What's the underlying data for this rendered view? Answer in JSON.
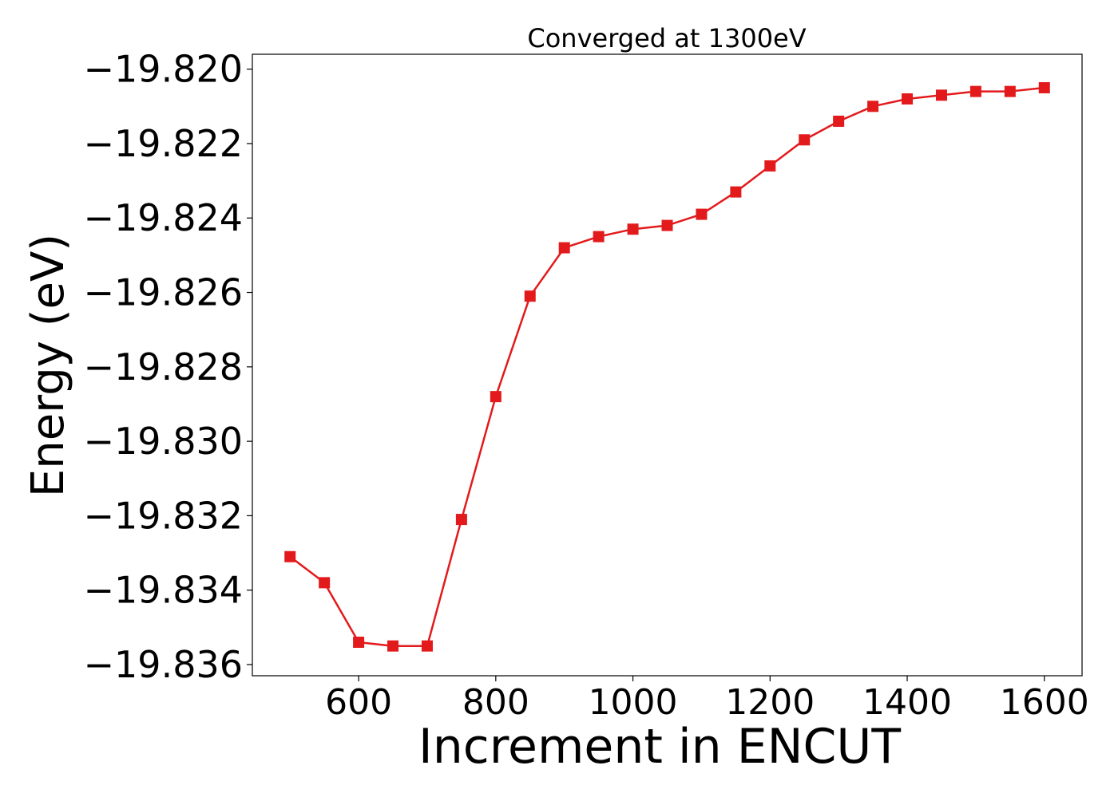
{
  "chart_data": {
    "type": "line",
    "title": "Converged at 1300eV",
    "xlabel": "Increment in ENCUT",
    "ylabel": "Energy (eV)",
    "xlim": [
      445,
      1655
    ],
    "ylim": [
      -19.8363,
      -19.8196
    ],
    "x_ticks": [
      600,
      800,
      1000,
      1200,
      1400,
      1600
    ],
    "x_tick_labels": [
      "600",
      "800",
      "1000",
      "1200",
      "1400",
      "1600"
    ],
    "y_ticks": [
      -19.82,
      -19.822,
      -19.824,
      -19.826,
      -19.828,
      -19.83,
      -19.832,
      -19.834,
      -19.836
    ],
    "y_tick_labels": [
      "−19.820",
      "−19.822",
      "−19.824",
      "−19.826",
      "−19.828",
      "−19.830",
      "−19.832",
      "−19.834",
      "−19.836"
    ],
    "grid": false,
    "series": [
      {
        "color": "#e31a1c",
        "marker": "square",
        "x": [
          500,
          550,
          600,
          650,
          700,
          750,
          800,
          850,
          900,
          950,
          1000,
          1050,
          1100,
          1150,
          1200,
          1250,
          1300,
          1350,
          1400,
          1450,
          1500,
          1550,
          1600
        ],
        "y": [
          -19.8331,
          -19.8338,
          -19.8354,
          -19.8355,
          -19.8355,
          -19.8321,
          -19.8288,
          -19.8261,
          -19.8248,
          -19.8245,
          -19.8243,
          -19.8242,
          -19.8239,
          -19.8233,
          -19.8226,
          -19.8219,
          -19.8214,
          -19.821,
          -19.8208,
          -19.8207,
          -19.8206,
          -19.8206,
          -19.8205
        ]
      }
    ]
  }
}
